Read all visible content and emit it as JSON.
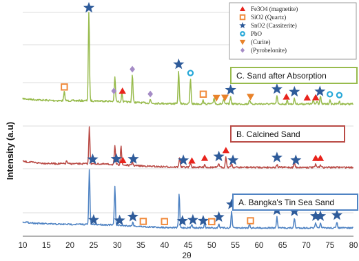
{
  "chart_data": {
    "type": "line",
    "xlabel": "2θ",
    "ylabel": "Intensity (a.u)",
    "x_ticks": [
      10,
      15,
      20,
      25,
      30,
      35,
      40,
      45,
      50,
      55,
      60,
      65,
      70,
      75,
      80
    ],
    "xlim": [
      10,
      80
    ],
    "grid": "horizontal",
    "legend_position": "top-right",
    "legend": [
      {
        "label": "Fe3O4 (magnetite)",
        "marker": "triangle",
        "color": "#e8231c"
      },
      {
        "label": "SiO2 (Quartz)",
        "marker": "square",
        "color": "#f08a3c"
      },
      {
        "label": "SnO2 (Cassiterite)",
        "marker": "star",
        "color": "#2e5b9a"
      },
      {
        "label": "PbO",
        "marker": "circle",
        "color": "#27a8d8"
      },
      {
        "label": "(Curite)",
        "marker": "triangle-down",
        "color": "#e8822a"
      },
      {
        "label": "(Pyrobelonite)",
        "marker": "diamond",
        "color": "#a58cc6"
      }
    ],
    "series": [
      {
        "name": "C. Sand after Absorption",
        "color": "#98bb4d",
        "peaks": [
          {
            "x": 18.8,
            "h": 10
          },
          {
            "x": 24.0,
            "h": 100
          },
          {
            "x": 29.5,
            "h": 28
          },
          {
            "x": 31.0,
            "h": 10
          },
          {
            "x": 33.2,
            "h": 32
          },
          {
            "x": 37.0,
            "h": 4
          },
          {
            "x": 43.0,
            "h": 37
          },
          {
            "x": 45.5,
            "h": 28
          },
          {
            "x": 48.2,
            "h": 4
          },
          {
            "x": 50.5,
            "h": 7
          },
          {
            "x": 52.5,
            "h": 5
          },
          {
            "x": 54.0,
            "h": 8
          },
          {
            "x": 58.0,
            "h": 5
          },
          {
            "x": 63.8,
            "h": 9
          },
          {
            "x": 66.0,
            "h": 4
          },
          {
            "x": 67.5,
            "h": 6
          },
          {
            "x": 71.5,
            "h": 4
          },
          {
            "x": 72.3,
            "h": 4
          },
          {
            "x": 73.0,
            "h": 9
          },
          {
            "x": 75.0,
            "h": 4
          },
          {
            "x": 77.0,
            "h": 3
          }
        ],
        "markers": [
          {
            "x": 18.8,
            "type": "square"
          },
          {
            "x": 24.0,
            "type": "star"
          },
          {
            "x": 29.3,
            "type": "diamond"
          },
          {
            "x": 31.1,
            "type": "triangle"
          },
          {
            "x": 33.2,
            "type": "diamond"
          },
          {
            "x": 37.0,
            "type": "diamond"
          },
          {
            "x": 43.0,
            "type": "star"
          },
          {
            "x": 45.5,
            "type": "circle"
          },
          {
            "x": 48.2,
            "type": "square"
          },
          {
            "x": 51.0,
            "type": "triangle-down"
          },
          {
            "x": 52.8,
            "type": "triangle-down"
          },
          {
            "x": 54.0,
            "type": "star"
          },
          {
            "x": 58.2,
            "type": "triangle-down"
          },
          {
            "x": 63.8,
            "type": "star"
          },
          {
            "x": 65.8,
            "type": "triangle"
          },
          {
            "x": 67.5,
            "type": "star"
          },
          {
            "x": 70.2,
            "type": "triangle"
          },
          {
            "x": 72.0,
            "type": "triangle"
          },
          {
            "x": 72.9,
            "type": "star"
          },
          {
            "x": 75.0,
            "type": "circle"
          },
          {
            "x": 77.0,
            "type": "circle"
          }
        ]
      },
      {
        "name": "B. Calcined Sand",
        "color": "#b94a45",
        "peaks": [
          {
            "x": 19.3,
            "h": 3
          },
          {
            "x": 24.1,
            "h": 38
          },
          {
            "x": 29.5,
            "h": 19
          },
          {
            "x": 30.8,
            "h": 20
          },
          {
            "x": 33.2,
            "h": 4
          },
          {
            "x": 43.2,
            "h": 10
          },
          {
            "x": 45.5,
            "h": 4
          },
          {
            "x": 48.5,
            "h": 3
          },
          {
            "x": 51.5,
            "h": 4
          },
          {
            "x": 53.0,
            "h": 11
          },
          {
            "x": 54.2,
            "h": 4
          },
          {
            "x": 63.8,
            "h": 3
          },
          {
            "x": 67.5,
            "h": 5
          },
          {
            "x": 72.0,
            "h": 3
          },
          {
            "x": 73.0,
            "h": 3
          }
        ],
        "markers": [
          {
            "x": 24.8,
            "type": "star"
          },
          {
            "x": 29.8,
            "type": "star"
          },
          {
            "x": 31.2,
            "type": "triangle"
          },
          {
            "x": 33.4,
            "type": "star"
          },
          {
            "x": 44.0,
            "type": "star"
          },
          {
            "x": 45.8,
            "type": "triangle"
          },
          {
            "x": 48.5,
            "type": "triangle"
          },
          {
            "x": 51.5,
            "type": "star"
          },
          {
            "x": 53.0,
            "type": "triangle"
          },
          {
            "x": 54.5,
            "type": "star"
          },
          {
            "x": 63.8,
            "type": "star"
          },
          {
            "x": 67.8,
            "type": "star"
          },
          {
            "x": 72.0,
            "type": "triangle"
          },
          {
            "x": 73.0,
            "type": "triangle"
          }
        ]
      },
      {
        "name": "A. Bangka's Tin Sea Sand",
        "color": "#4f83c3",
        "peaks": [
          {
            "x": 24.1,
            "h": 56
          },
          {
            "x": 29.5,
            "h": 39
          },
          {
            "x": 33.3,
            "h": 4
          },
          {
            "x": 43.1,
            "h": 35
          },
          {
            "x": 45.8,
            "h": 4
          },
          {
            "x": 48.5,
            "h": 4
          },
          {
            "x": 51.5,
            "h": 4
          },
          {
            "x": 54.2,
            "h": 17
          },
          {
            "x": 58.0,
            "h": 4
          },
          {
            "x": 63.8,
            "h": 11
          },
          {
            "x": 67.5,
            "h": 10
          },
          {
            "x": 72.0,
            "h": 5
          },
          {
            "x": 73.0,
            "h": 5
          },
          {
            "x": 76.5,
            "h": 6
          }
        ],
        "markers": [
          {
            "x": 25.0,
            "type": "star"
          },
          {
            "x": 30.5,
            "type": "star"
          },
          {
            "x": 33.3,
            "type": "star"
          },
          {
            "x": 35.5,
            "type": "square"
          },
          {
            "x": 40.0,
            "type": "square"
          },
          {
            "x": 43.8,
            "type": "star"
          },
          {
            "x": 46.0,
            "type": "star"
          },
          {
            "x": 48.2,
            "type": "star"
          },
          {
            "x": 50.0,
            "type": "square"
          },
          {
            "x": 51.5,
            "type": "star"
          },
          {
            "x": 54.2,
            "type": "star"
          },
          {
            "x": 58.2,
            "type": "square"
          },
          {
            "x": 63.8,
            "type": "star"
          },
          {
            "x": 67.5,
            "type": "star"
          },
          {
            "x": 72.0,
            "type": "star"
          },
          {
            "x": 73.0,
            "type": "star"
          },
          {
            "x": 76.5,
            "type": "star"
          }
        ]
      }
    ]
  }
}
